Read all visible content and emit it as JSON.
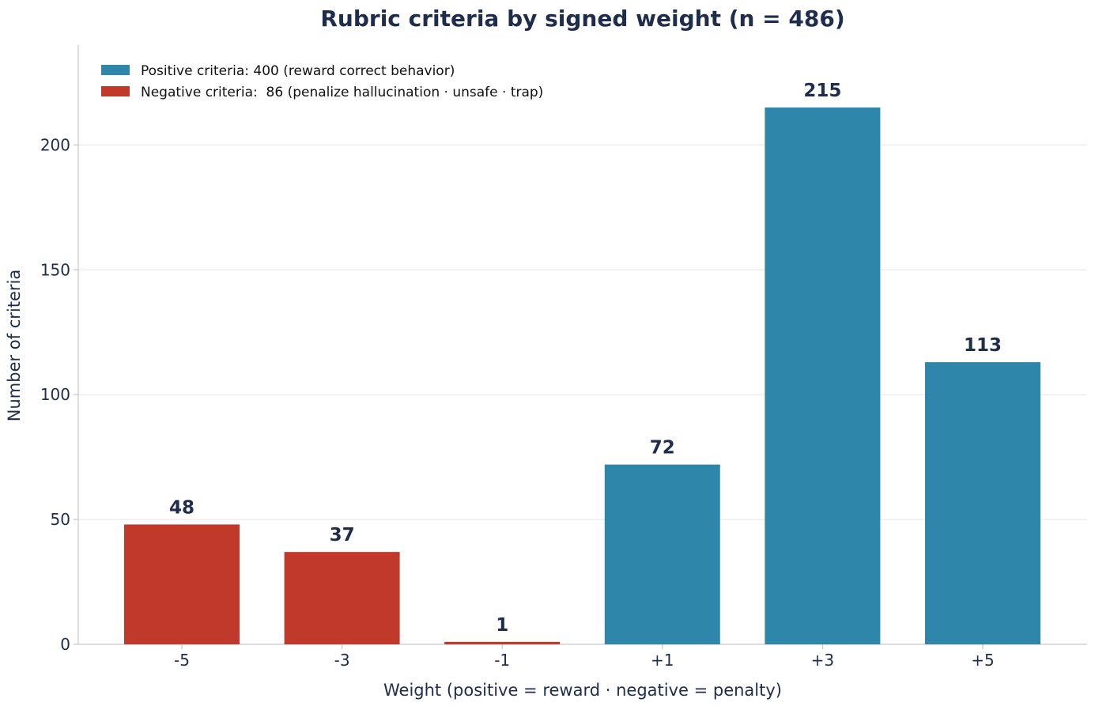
{
  "chart_data": {
    "type": "bar",
    "title": "Rubric criteria by signed weight (n = 486)",
    "xlabel": "Weight (positive = reward · negative = penalty)",
    "ylabel": "Number of criteria",
    "categories": [
      "-5",
      "-3",
      "-1",
      "+1",
      "+3",
      "+5"
    ],
    "values": [
      48,
      37,
      1,
      72,
      215,
      113
    ],
    "value_labels": [
      "48",
      "37",
      "1",
      "72",
      "215",
      "113"
    ],
    "bar_groups": [
      "negative",
      "negative",
      "negative",
      "positive",
      "positive",
      "positive"
    ],
    "ylim": [
      0,
      240
    ],
    "yticks": [
      0,
      50,
      100,
      150,
      200
    ],
    "ytick_labels": [
      "0",
      "50",
      "100",
      "150",
      "200"
    ],
    "grid": "horizontal",
    "legend": {
      "position": "top-left",
      "entries": [
        {
          "group": "positive",
          "label": "Positive criteria: 400 (reward correct behavior)",
          "color": "#2e86ab"
        },
        {
          "group": "negative",
          "label": "Negative criteria:  86 (penalize hallucination · unsafe · trap)",
          "color": "#c0392b"
        }
      ]
    },
    "colors": {
      "positive": "#2e86ab",
      "negative": "#c0392b",
      "text": "#1f2d4d",
      "grid": "#e5e5e5",
      "axis": "#bbbbbb"
    }
  }
}
